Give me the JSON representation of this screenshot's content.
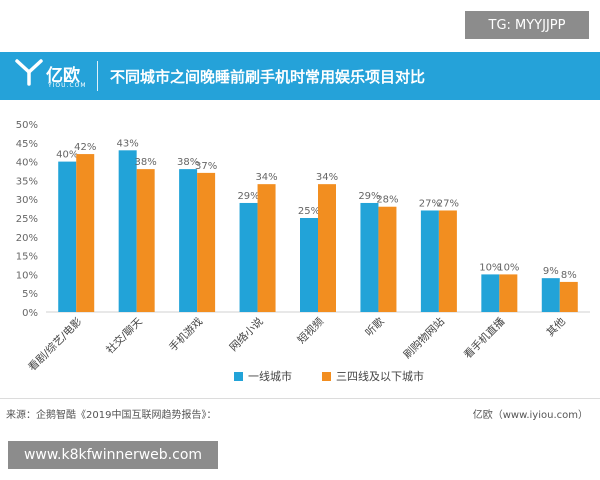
{
  "watermark_top": "TG: MYYJJPP",
  "header": {
    "logo_text": "亿欧",
    "logo_sub": "YIOU.COM",
    "title": "不同城市之间晚睡前刷手机时常用娱乐项目对比"
  },
  "colors": {
    "header_bg": "#25a2d9",
    "series1": "#22a3d8",
    "series2": "#f28e20"
  },
  "chart_data": {
    "type": "bar",
    "title": "不同城市之间晚睡前刷手机时常用娱乐项目对比",
    "categories": [
      "看剧/综艺/电影",
      "社交/聊天",
      "手机游戏",
      "网络小说",
      "短视频",
      "听歌",
      "刷购物网站",
      "看手机直播",
      "其他"
    ],
    "series": [
      {
        "name": "一线城市",
        "values": [
          40,
          43,
          38,
          29,
          25,
          29,
          27,
          10,
          9
        ]
      },
      {
        "name": "三四线及以下城市",
        "values": [
          42,
          38,
          37,
          34,
          34,
          28,
          27,
          10,
          8
        ]
      }
    ],
    "ylim": [
      0,
      50
    ],
    "yticks": [
      "0%",
      "5%",
      "10%",
      "15%",
      "20%",
      "25%",
      "30%",
      "35%",
      "40%",
      "45%",
      "50%"
    ],
    "value_suffix": "%",
    "legend_position": "bottom"
  },
  "source": {
    "left": "来源：企鹅智酷《2019中国互联网趋势报告》：",
    "right": "亿欧（www.iyiou.com）"
  },
  "watermark_bottom": "www.k8kfwinnerweb.com"
}
